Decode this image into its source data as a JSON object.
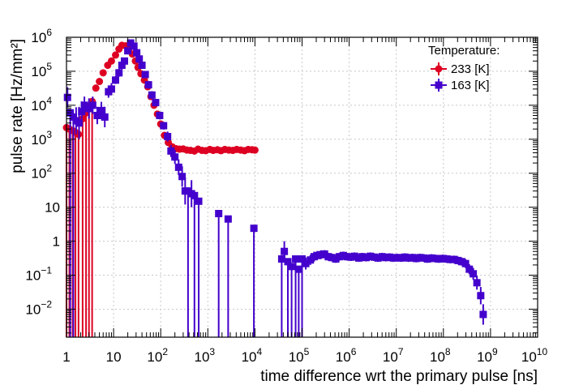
{
  "chart_data": {
    "type": "scatter",
    "title": "",
    "xlabel": "time difference wrt the primary pulse [ns]",
    "ylabel": "pulse rate [Hz/mm²]",
    "xscale": "log",
    "yscale": "log",
    "xlim": [
      1,
      10000000000.0
    ],
    "ylim": [
      0.0015,
      1000000
    ],
    "grid": true,
    "x_ticks": [
      {
        "v": 1,
        "base": "1",
        "exp": ""
      },
      {
        "v": 10,
        "base": "10",
        "exp": ""
      },
      {
        "v": 100,
        "base": "10",
        "exp": "2"
      },
      {
        "v": 1000,
        "base": "10",
        "exp": "3"
      },
      {
        "v": 10000,
        "base": "10",
        "exp": "4"
      },
      {
        "v": 100000,
        "base": "10",
        "exp": "5"
      },
      {
        "v": 1000000,
        "base": "10",
        "exp": "6"
      },
      {
        "v": 10000000,
        "base": "10",
        "exp": "7"
      },
      {
        "v": 100000000,
        "base": "10",
        "exp": "8"
      },
      {
        "v": 1000000000,
        "base": "10",
        "exp": "9"
      },
      {
        "v": 10000000000,
        "base": "10",
        "exp": "10"
      }
    ],
    "y_ticks": [
      {
        "v": 0.01,
        "base": "10",
        "exp": "−2"
      },
      {
        "v": 0.1,
        "base": "10",
        "exp": "−1"
      },
      {
        "v": 1,
        "base": "1",
        "exp": ""
      },
      {
        "v": 10,
        "base": "10",
        "exp": ""
      },
      {
        "v": 100,
        "base": "10",
        "exp": "2"
      },
      {
        "v": 1000,
        "base": "10",
        "exp": "3"
      },
      {
        "v": 10000,
        "base": "10",
        "exp": "4"
      },
      {
        "v": 100000,
        "base": "10",
        "exp": "5"
      },
      {
        "v": 1000000,
        "base": "10",
        "exp": "6"
      }
    ],
    "legend": {
      "title": "Temperature:",
      "position": "top-right",
      "entries": [
        "233 [K]",
        "163 [K]"
      ]
    },
    "series": [
      {
        "name": "233 [K]",
        "color": "#dd0022",
        "marker": "circle",
        "points": [
          [
            1.0,
            2200,
            0
          ],
          [
            1.15,
            2000,
            0
          ],
          [
            1.35,
            1800,
            0
          ],
          [
            1.55,
            1600,
            0
          ],
          [
            1.8,
            1400,
            0
          ],
          [
            2.2,
            4000,
            0
          ],
          [
            2.6,
            6000,
            0
          ],
          [
            3.0,
            9000,
            0
          ],
          [
            3.5,
            13000,
            0
          ],
          [
            4.2,
            32000,
            1.15
          ],
          [
            5.0,
            50000,
            1.15
          ],
          [
            6.0,
            90000,
            1.15
          ],
          [
            7.5,
            150000,
            1.15
          ],
          [
            9.0,
            200000,
            1.15
          ],
          [
            11,
            300000,
            1.15
          ],
          [
            13,
            450000,
            1.15
          ],
          [
            15,
            580000,
            1.15
          ],
          [
            18,
            560000,
            1.15
          ],
          [
            21,
            450000,
            1.15
          ],
          [
            25,
            320000,
            1.15
          ],
          [
            29,
            200000,
            1.15
          ],
          [
            33,
            130000,
            1.15
          ],
          [
            38,
            85000,
            1.15
          ],
          [
            45,
            55000,
            1.15
          ],
          [
            53,
            35000,
            1.15
          ],
          [
            62,
            18000,
            1.15
          ],
          [
            72,
            10000,
            1.15
          ],
          [
            85,
            5500,
            1.15
          ],
          [
            100,
            2800,
            1.15
          ],
          [
            120,
            1300,
            1.15
          ],
          [
            145,
            800,
            1.15
          ],
          [
            175,
            600,
            1.15
          ],
          [
            210,
            530,
            1.15
          ],
          [
            250,
            510,
            1.15
          ],
          [
            300,
            520,
            1.15
          ],
          [
            360,
            480,
            1.15
          ],
          [
            430,
            470,
            1.15
          ],
          [
            520,
            450,
            1.15
          ],
          [
            620,
            510,
            1.15
          ],
          [
            750,
            470,
            1.15
          ],
          [
            900,
            460,
            1.15
          ],
          [
            1100,
            500,
            1.15
          ],
          [
            1300,
            470,
            1.15
          ],
          [
            1600,
            490,
            1.15
          ],
          [
            1900,
            460,
            1.15
          ],
          [
            2300,
            500,
            1.15
          ],
          [
            2800,
            480,
            1.15
          ],
          [
            3400,
            470,
            1.15
          ],
          [
            4100,
            500,
            1.15
          ],
          [
            5000,
            480,
            1.15
          ],
          [
            6000,
            460,
            1.15
          ],
          [
            7200,
            500,
            1.15
          ],
          [
            8700,
            490,
            1.15
          ],
          [
            10000,
            480,
            1.15
          ]
        ]
      },
      {
        "name": "163 [K]",
        "color": "#4400cc",
        "marker": "square",
        "points": [
          [
            1.05,
            17000,
            2
          ],
          [
            1.2,
            6000,
            0
          ],
          [
            1.4,
            4500,
            0
          ],
          [
            1.6,
            3500,
            2.5
          ],
          [
            1.85,
            3000,
            3
          ],
          [
            2.1,
            6500,
            2
          ],
          [
            2.4,
            10000,
            1.8
          ],
          [
            3.0,
            8000,
            2
          ],
          [
            3.6,
            10000,
            1.8
          ],
          [
            4.5,
            5000,
            1.8
          ],
          [
            5.5,
            7000,
            1.8
          ],
          [
            6.5,
            4500,
            2
          ],
          [
            7.8,
            25000,
            1.5
          ],
          [
            9.0,
            30000,
            1.5
          ],
          [
            11,
            55000,
            1.3
          ],
          [
            13,
            90000,
            1.3
          ],
          [
            15,
            150000,
            1.3
          ],
          [
            17,
            200000,
            1.25
          ],
          [
            20,
            400000,
            1.2
          ],
          [
            23,
            680000,
            1.2
          ],
          [
            27,
            550000,
            1.2
          ],
          [
            31,
            350000,
            1.2
          ],
          [
            35,
            230000,
            1.2
          ],
          [
            40,
            150000,
            1.25
          ],
          [
            47,
            80000,
            1.25
          ],
          [
            55,
            40000,
            1.3
          ],
          [
            65,
            20000,
            1.3
          ],
          [
            78,
            12000,
            1.3
          ],
          [
            95,
            5000,
            1.3
          ],
          [
            115,
            2500,
            1.3
          ],
          [
            140,
            1200,
            1.4
          ],
          [
            165,
            450,
            1.5
          ],
          [
            200,
            300,
            1.6
          ],
          [
            240,
            150,
            1.7
          ],
          [
            285,
            80,
            2
          ],
          [
            330,
            30,
            2.5
          ],
          [
            380,
            30,
            0
          ],
          [
            450,
            25,
            2.5
          ],
          [
            520,
            22,
            0
          ],
          [
            640,
            15,
            0
          ],
          [
            1700,
            6.5,
            0
          ],
          [
            2700,
            4.5,
            0
          ],
          [
            9500,
            2.4,
            0
          ],
          [
            37000,
            0.3,
            0
          ],
          [
            42000,
            0.5,
            2
          ],
          [
            50000,
            0.25,
            0
          ],
          [
            60000,
            0.18,
            0
          ],
          [
            73000,
            0.3,
            0
          ],
          [
            85000,
            0.15,
            0
          ],
          [
            100000,
            0.3,
            0
          ],
          [
            120000,
            0.22,
            1.5
          ],
          [
            150000,
            0.28,
            1.4
          ],
          [
            180000,
            0.35,
            1.4
          ],
          [
            210000,
            0.38,
            1.35
          ],
          [
            250000,
            0.4,
            1.35
          ],
          [
            300000,
            0.42,
            1.3
          ],
          [
            360000,
            0.35,
            1.3
          ],
          [
            430000,
            0.33,
            1.3
          ],
          [
            520000,
            0.3,
            1.3
          ],
          [
            620000,
            0.35,
            1.3
          ],
          [
            750000,
            0.38,
            1.3
          ],
          [
            900000,
            0.35,
            1.3
          ],
          [
            1100000,
            0.34,
            1.3
          ],
          [
            1300000,
            0.36,
            1.3
          ],
          [
            1600000,
            0.32,
            1.3
          ],
          [
            1900000,
            0.35,
            1.3
          ],
          [
            2300000,
            0.33,
            1.3
          ],
          [
            2800000,
            0.36,
            1.3
          ],
          [
            3400000,
            0.34,
            1.3
          ],
          [
            4100000,
            0.32,
            1.3
          ],
          [
            5000000,
            0.35,
            1.3
          ],
          [
            6000000,
            0.33,
            1.3
          ],
          [
            7200000,
            0.34,
            1.3
          ],
          [
            8700000,
            0.32,
            1.3
          ],
          [
            10500000,
            0.33,
            1.3
          ],
          [
            12600000,
            0.32,
            1.3
          ],
          [
            15200000,
            0.34,
            1.3
          ],
          [
            18300000,
            0.32,
            1.3
          ],
          [
            22000000,
            0.33,
            1.3
          ],
          [
            26500000,
            0.31,
            1.3
          ],
          [
            32000000,
            0.33,
            1.3
          ],
          [
            38500000,
            0.32,
            1.3
          ],
          [
            46000000,
            0.3,
            1.3
          ],
          [
            56000000,
            0.32,
            1.3
          ],
          [
            67000000,
            0.31,
            1.3
          ],
          [
            80000000,
            0.3,
            1.3
          ],
          [
            97000000,
            0.31,
            1.3
          ],
          [
            117000000,
            0.3,
            1.3
          ],
          [
            140000000,
            0.29,
            1.3
          ],
          [
            170000000,
            0.29,
            1.3
          ],
          [
            205000000,
            0.27,
            1.3
          ],
          [
            245000000,
            0.25,
            1.3
          ],
          [
            295000000,
            0.22,
            1.35
          ],
          [
            355000000,
            0.15,
            1.4
          ],
          [
            430000000,
            0.11,
            1.5
          ],
          [
            515000000,
            0.06,
            1.6
          ],
          [
            620000000,
            0.025,
            1.8
          ],
          [
            700000000,
            0.007,
            2
          ]
        ]
      }
    ]
  }
}
